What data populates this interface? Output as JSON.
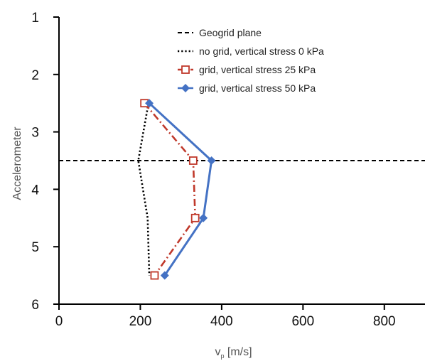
{
  "chart_data": {
    "type": "line",
    "xlabel_main": "v",
    "xlabel_sub": "p",
    "xlabel_unit": " [m/s]",
    "ylabel": "Accelerometer",
    "xlim": [
      0,
      900
    ],
    "ylim": [
      1,
      6
    ],
    "y_inverted": true,
    "x_ticks": [
      0,
      200,
      400,
      600,
      800
    ],
    "x_tick_labels": [
      "0",
      "200",
      "400",
      "600",
      "800"
    ],
    "y_ticks": [
      1,
      2,
      3,
      4,
      5,
      6
    ],
    "y_tick_labels": [
      "1",
      "2",
      "3",
      "4",
      "5",
      "6"
    ],
    "grid": false,
    "legend_position": "top-right",
    "geogrid_plane": 3.5,
    "series": [
      {
        "name": "Geogrid plane",
        "style": "dashed",
        "color": "#000000",
        "marker": "none",
        "points": [
          [
            0,
            3.5
          ],
          [
            900,
            3.5
          ]
        ]
      },
      {
        "name": "no grid, vertical stress 0 kPa",
        "style": "dotted",
        "color": "#000000",
        "marker": "none",
        "points": [
          [
            220,
            2.5
          ],
          [
            195,
            3.5
          ],
          [
            218,
            4.5
          ],
          [
            222,
            5.5
          ]
        ]
      },
      {
        "name": "grid, vertical stress  25 kPa",
        "style": "dashdot",
        "color": "#c0392b",
        "marker": "square-open",
        "points": [
          [
            210,
            2.5
          ],
          [
            330,
            3.5
          ],
          [
            335,
            4.5
          ],
          [
            235,
            5.5
          ]
        ]
      },
      {
        "name": "grid, vertical stress 50 kPa",
        "style": "solid",
        "color": "#4472c4",
        "marker": "diamond",
        "points": [
          [
            222,
            2.5
          ],
          [
            375,
            3.5
          ],
          [
            355,
            4.5
          ],
          [
            260,
            5.5
          ]
        ]
      }
    ]
  }
}
